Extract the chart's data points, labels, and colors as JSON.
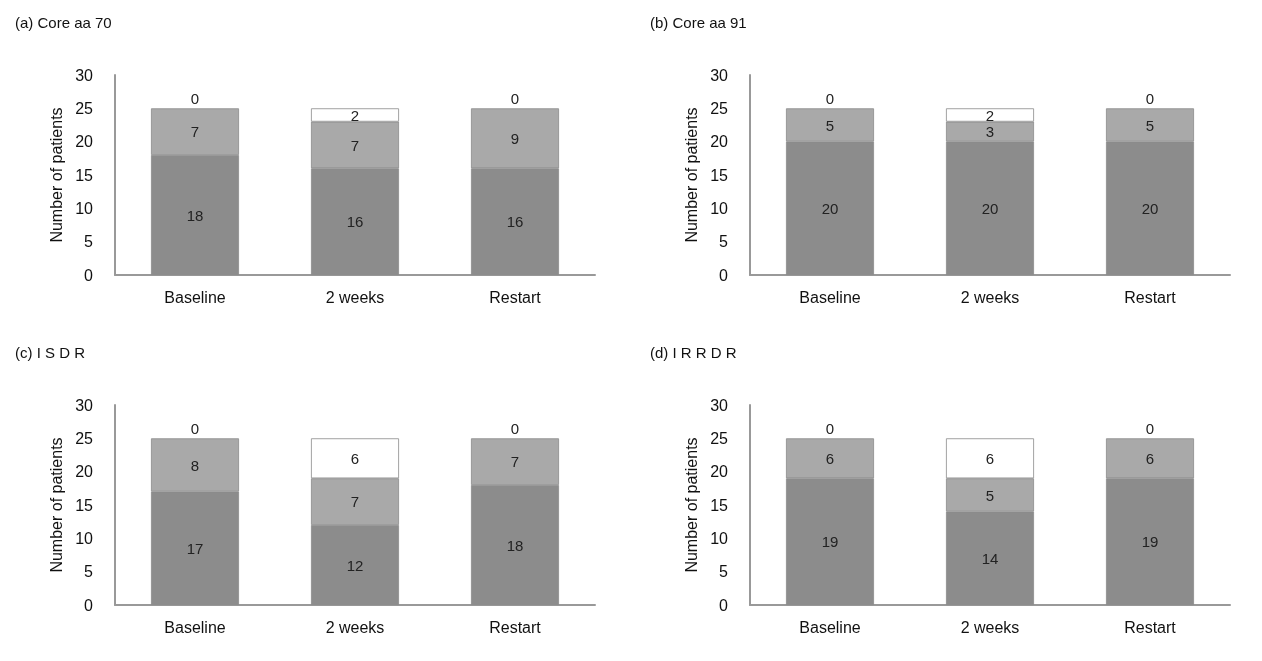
{
  "chart_data": [
    {
      "type": "bar",
      "title": "(a) Core aa 70",
      "ylabel": "Number of patients",
      "categories": [
        "Baseline",
        "2 weeks",
        "Restart"
      ],
      "stacked": true,
      "data_labels": true,
      "grid": false,
      "ylim": [
        0,
        30
      ],
      "yticks": [
        0,
        5,
        10,
        15,
        20,
        25,
        30
      ],
      "series": [
        {
          "color": "#8c8c8c",
          "values": [
            18,
            16,
            16
          ]
        },
        {
          "color": "#a9a9a9",
          "values": [
            7,
            7,
            9
          ]
        },
        {
          "color": "#ffffff",
          "values": [
            0,
            2,
            0
          ]
        }
      ]
    },
    {
      "type": "bar",
      "title": "(b) Core aa 91",
      "ylabel": "Number of patients",
      "categories": [
        "Baseline",
        "2 weeks",
        "Restart"
      ],
      "stacked": true,
      "data_labels": true,
      "grid": false,
      "ylim": [
        0,
        30
      ],
      "yticks": [
        0,
        5,
        10,
        15,
        20,
        25,
        30
      ],
      "series": [
        {
          "color": "#8c8c8c",
          "values": [
            20,
            20,
            20
          ]
        },
        {
          "color": "#a9a9a9",
          "values": [
            5,
            3,
            5
          ]
        },
        {
          "color": "#ffffff",
          "values": [
            0,
            2,
            0
          ]
        }
      ]
    },
    {
      "type": "bar",
      "title": "(c) I S D R",
      "ylabel": "Number of patients",
      "categories": [
        "Baseline",
        "2 weeks",
        "Restart"
      ],
      "stacked": true,
      "data_labels": true,
      "grid": false,
      "ylim": [
        0,
        30
      ],
      "yticks": [
        0,
        5,
        10,
        15,
        20,
        25,
        30
      ],
      "series": [
        {
          "color": "#8c8c8c",
          "values": [
            17,
            12,
            18
          ]
        },
        {
          "color": "#a9a9a9",
          "values": [
            8,
            7,
            7
          ]
        },
        {
          "color": "#ffffff",
          "values": [
            0,
            6,
            0
          ]
        }
      ]
    },
    {
      "type": "bar",
      "title": "(d) I R R D R",
      "ylabel": "Number of patients",
      "categories": [
        "Baseline",
        "2 weeks",
        "Restart"
      ],
      "stacked": true,
      "data_labels": true,
      "grid": false,
      "ylim": [
        0,
        30
      ],
      "yticks": [
        0,
        5,
        10,
        15,
        20,
        25,
        30
      ],
      "series": [
        {
          "color": "#8c8c8c",
          "values": [
            19,
            14,
            19
          ]
        },
        {
          "color": "#a9a9a9",
          "values": [
            6,
            5,
            6
          ]
        },
        {
          "color": "#ffffff",
          "values": [
            0,
            6,
            0
          ]
        }
      ]
    }
  ]
}
